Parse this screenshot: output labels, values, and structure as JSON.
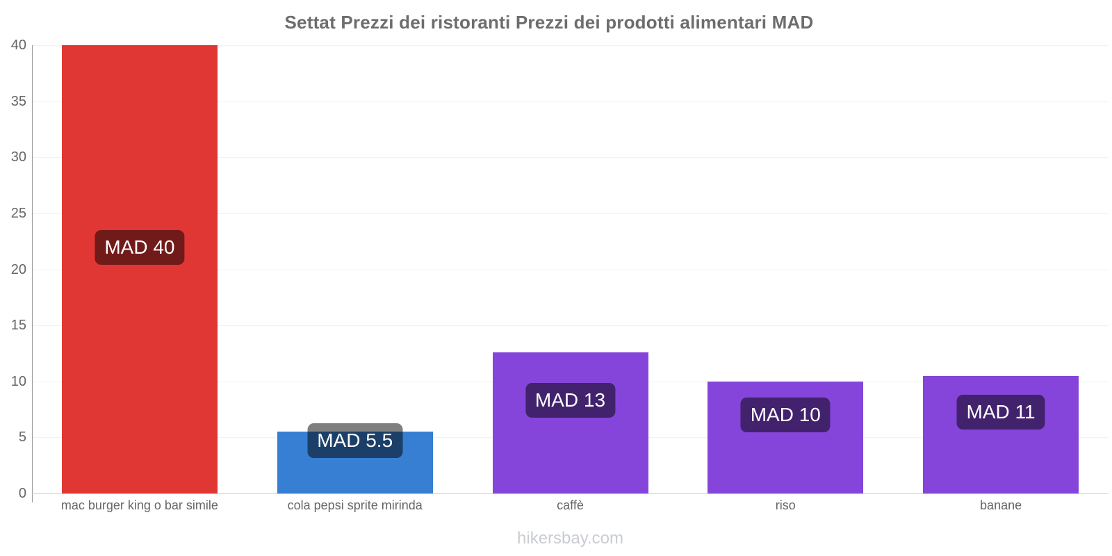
{
  "title": "Settat Prezzi dei ristoranti Prezzi dei prodotti alimentari MAD",
  "footer": "hikersbay.com",
  "chart_data": {
    "type": "bar",
    "title": "Settat Prezzi dei ristoranti Prezzi dei prodotti alimentari MAD",
    "currency": "MAD",
    "categories": [
      "mac burger king o bar simile",
      "cola pepsi sprite mirinda",
      "caffè",
      "riso",
      "banane"
    ],
    "values": [
      40,
      5.5,
      12.6,
      10,
      10.5
    ],
    "data_labels": [
      "MAD 40",
      "MAD 5.5",
      "MAD 13",
      "MAD 10",
      "MAD 11"
    ],
    "bar_colors": [
      "#e13734",
      "#377fd3",
      "#8545da",
      "#8545da",
      "#8545da"
    ],
    "data_label_style": {
      "background": "rgba(0,0,0,0.5)",
      "text_color": "#ffffff"
    },
    "xlabel": "",
    "ylabel": "",
    "ylim": [
      0,
      40
    ],
    "yticks": [
      0,
      5,
      10,
      15,
      20,
      25,
      30,
      35,
      40
    ],
    "grid": "horizontal",
    "legend": "none",
    "watermark": "hikersbay.com"
  },
  "style": {
    "title_color": "#6d6d6d",
    "axis_label_color": "#666666",
    "gridline_color": "#f2f2f2",
    "axis_line_color": "#9a9a9a",
    "baseline_color": "#cfcfcf",
    "footer_color": "#c9ccd1",
    "background": "#ffffff"
  }
}
